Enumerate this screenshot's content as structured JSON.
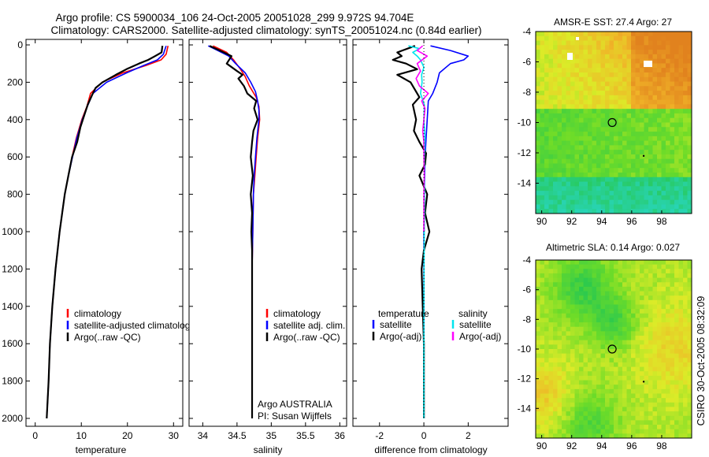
{
  "header": {
    "line1": "Argo profile: CS 5900034_106 24-Oct-2005 20051028_299 9.972S 94.704E",
    "line2": "Climatology: CARS2000. Satellite-adjusted climatology: synTS_20051024.nc (0.84d earlier)"
  },
  "side_label": "CSIRO 30-Oct-2005 08:32:09",
  "colors": {
    "climatology": "#ff0000",
    "satellite": "#0000ff",
    "argo": "#000000",
    "sal_satellite": "#00e5ee",
    "sal_argo": "#ff00ff"
  },
  "chart_data": [
    {
      "id": "temperature",
      "type": "line",
      "xlabel": "temperature",
      "ylabel": "",
      "xlim": [
        -2,
        32
      ],
      "ylim": [
        2050,
        0
      ],
      "xticks": [
        0,
        10,
        20,
        30
      ],
      "yticks": [
        0,
        200,
        400,
        600,
        800,
        1000,
        1200,
        1400,
        1600,
        1800,
        2000
      ],
      "legend": {
        "position": "lower-right",
        "entries": [
          "climatology",
          "satellite-adjusted climatology",
          "Argo(..raw -QC)"
        ]
      },
      "series": [
        {
          "name": "climatology",
          "color": "#ff0000",
          "depth": [
            5,
            50,
            80,
            110,
            150,
            200,
            260,
            330,
            400,
            500,
            600,
            700,
            800,
            1000,
            1200,
            1400,
            1600,
            1800,
            2000
          ],
          "values": [
            28.8,
            28.4,
            27.3,
            24,
            19,
            14.5,
            12,
            11.2,
            10.1,
            8.9,
            8,
            7.2,
            6.4,
            5.3,
            4.4,
            3.7,
            3.2,
            2.9,
            2.5
          ]
        },
        {
          "name": "satellite-adjusted climatology",
          "color": "#0000ff",
          "depth": [
            5,
            50,
            80,
            110,
            150,
            200,
            260,
            330,
            400,
            500,
            600,
            700,
            800,
            1000,
            1200,
            1400,
            1600,
            1800,
            2000
          ],
          "values": [
            28.4,
            27.8,
            26.5,
            23.5,
            19.8,
            15.5,
            12.5,
            11.3,
            10.2,
            9,
            8.1,
            7.2,
            6.4,
            5.3,
            4.4,
            3.7,
            3.2,
            2.9,
            2.5
          ]
        },
        {
          "name": "Argo(..raw -QC)",
          "color": "#000000",
          "depth": [
            5,
            40,
            60,
            80,
            100,
            130,
            160,
            200,
            230,
            270,
            320,
            380,
            440,
            520,
            600,
            700,
            800,
            1000,
            1200,
            1400,
            1600,
            1800,
            2000
          ],
          "values": [
            27.6,
            27.4,
            26,
            24.5,
            22.5,
            19.8,
            17.5,
            14.6,
            13.1,
            12.3,
            11.4,
            10.6,
            9.8,
            9.1,
            8,
            7.2,
            6.4,
            5.3,
            4.4,
            3.7,
            3.2,
            2.9,
            2.5
          ]
        }
      ]
    },
    {
      "id": "salinity",
      "type": "line",
      "xlabel": "salinity",
      "ylabel": "",
      "xlim": [
        33.8,
        36.1
      ],
      "ylim": [
        2050,
        0
      ],
      "xticks": [
        34,
        34.5,
        35,
        35.5,
        36
      ],
      "xticklabels": [
        "34",
        "34.5",
        "35",
        "35.5",
        "36"
      ],
      "legend": {
        "position": "lower-right",
        "entries": [
          "climatology",
          "satellite adj. clim.",
          "Argo(..raw -QC)"
        ]
      },
      "annotation": [
        "Argo AUSTRALIA",
        "PI: Susan Wijffels"
      ],
      "series": [
        {
          "name": "climatology",
          "color": "#ff0000",
          "depth": [
            5,
            40,
            80,
            130,
            170,
            220,
            280,
            330,
            400,
            500,
            600,
            700,
            800,
            1000,
            1200,
            1400,
            1600,
            1800,
            2000
          ],
          "values": [
            34.15,
            34.35,
            34.45,
            34.55,
            34.62,
            34.68,
            34.78,
            34.82,
            34.83,
            34.8,
            34.78,
            34.76,
            34.74,
            34.73,
            34.72,
            34.72,
            34.72,
            34.72,
            34.72
          ]
        },
        {
          "name": "satellite adj. clim.",
          "color": "#0000ff",
          "depth": [
            5,
            30,
            60,
            100,
            150,
            200,
            250,
            300,
            350,
            400,
            500,
            600,
            700,
            800,
            1000,
            1200,
            1400,
            1600,
            1800,
            2000
          ],
          "values": [
            34.08,
            34.22,
            34.38,
            34.48,
            34.62,
            34.7,
            34.77,
            34.8,
            34.82,
            34.82,
            34.79,
            34.77,
            34.75,
            34.74,
            34.73,
            34.72,
            34.72,
            34.72,
            34.72,
            34.72
          ]
        },
        {
          "name": "Argo(..raw -QC)",
          "color": "#000000",
          "depth": [
            5,
            30,
            60,
            100,
            140,
            160,
            180,
            220,
            260,
            300,
            340,
            400,
            460,
            520,
            600,
            700,
            800,
            900,
            1000,
            1100,
            1200,
            1400,
            1600,
            1800,
            2000
          ],
          "values": [
            34.1,
            34.25,
            34.42,
            34.35,
            34.5,
            34.58,
            34.52,
            34.6,
            34.65,
            34.78,
            34.75,
            34.8,
            34.74,
            34.72,
            34.7,
            34.73,
            34.7,
            34.72,
            34.71,
            34.72,
            34.72,
            34.72,
            34.72,
            34.72,
            34.72
          ]
        }
      ]
    },
    {
      "id": "difference",
      "type": "line",
      "xlabel": "difference from climatology",
      "ylabel": "",
      "xlim": [
        -3.2,
        3.8
      ],
      "ylim": [
        2050,
        0
      ],
      "xticks": [
        -2,
        0,
        2
      ],
      "legend": {
        "position": "lower-center",
        "headers": [
          "temperature",
          "salinity"
        ],
        "entries": [
          "satellite",
          "Argo(-adj)",
          "satellite",
          "Argo(-adj)"
        ]
      },
      "series": [
        {
          "name": "temperature satellite",
          "color": "#0000ff",
          "depth": [
            5,
            30,
            60,
            80,
            100,
            150,
            200,
            260,
            300,
            400,
            500,
            600,
            800,
            1000,
            1200,
            1400,
            1600,
            1800,
            2000
          ],
          "values": [
            0.3,
            1.2,
            2,
            1.8,
            1.2,
            0.7,
            0.6,
            0.4,
            0.2,
            0.15,
            0.1,
            0.05,
            0.02,
            0,
            0,
            0,
            0,
            0,
            0
          ]
        },
        {
          "name": "temperature Argo(-adj)",
          "color": "#000000",
          "depth": [
            5,
            40,
            60,
            80,
            100,
            130,
            160,
            200,
            240,
            280,
            320,
            400,
            460,
            520,
            580,
            640,
            700,
            800,
            900,
            1000,
            1100,
            1200,
            1400,
            1600,
            1800,
            2000
          ],
          "values": [
            -0.4,
            -1.2,
            -1.0,
            -1.4,
            -0.8,
            -0.3,
            -1.2,
            -0.6,
            -0.4,
            -0.2,
            -0.5,
            -0.35,
            -0.45,
            -0.2,
            0.1,
            0.05,
            -0.2,
            0.15,
            0.05,
            0.25,
            0,
            -0.1,
            -0.05,
            0,
            0,
            0
          ]
        },
        {
          "name": "salinity satellite",
          "color": "#00e5ee",
          "depth": [
            5,
            20,
            40,
            60,
            80,
            120,
            160,
            200,
            260,
            320,
            400,
            500,
            600,
            800,
            1000,
            1200,
            1400,
            1600,
            1800,
            2000
          ],
          "values": [
            -0.7,
            -0.2,
            -0.5,
            -0.3,
            -0.15,
            0,
            -0.1,
            -0.08,
            -0.15,
            0.02,
            0,
            0.05,
            0.02,
            0.03,
            0.02,
            0.01,
            0,
            0,
            0,
            0
          ]
        },
        {
          "name": "salinity Argo(-adj)",
          "color": "#ff00ff",
          "depth": [
            5,
            30,
            60,
            100,
            140,
            180,
            220,
            260,
            300,
            340,
            400,
            460,
            520,
            600,
            700,
            800,
            900,
            1000
          ],
          "values": [
            -0.05,
            -0.3,
            0.15,
            -0.3,
            -0.15,
            -0.35,
            -0.2,
            0.2,
            -0.1,
            0.05,
            0,
            -0.05,
            0,
            0,
            0.02,
            0,
            0,
            0
          ]
        }
      ]
    },
    {
      "id": "sst-map",
      "type": "heatmap",
      "title": "AMSR-E SST: 27.4  Argo: 27",
      "xlim": [
        89.6,
        100
      ],
      "ylim": [
        -16,
        -4
      ],
      "xticks": [
        90,
        92,
        94,
        96,
        98
      ],
      "yticks": [
        -4,
        -6,
        -8,
        -10,
        -12,
        -14
      ],
      "marker": {
        "lon": 94.7,
        "lat": -10
      }
    },
    {
      "id": "sla-map",
      "type": "heatmap",
      "title": "Altimetric SLA: 0.14  Argo: 0.027",
      "xlim": [
        89.6,
        100
      ],
      "ylim": [
        -16,
        -4
      ],
      "xticks": [
        90,
        92,
        94,
        96,
        98
      ],
      "yticks": [
        -4,
        -6,
        -8,
        -10,
        -12,
        -14
      ],
      "marker": {
        "lon": 94.7,
        "lat": -10
      }
    }
  ]
}
